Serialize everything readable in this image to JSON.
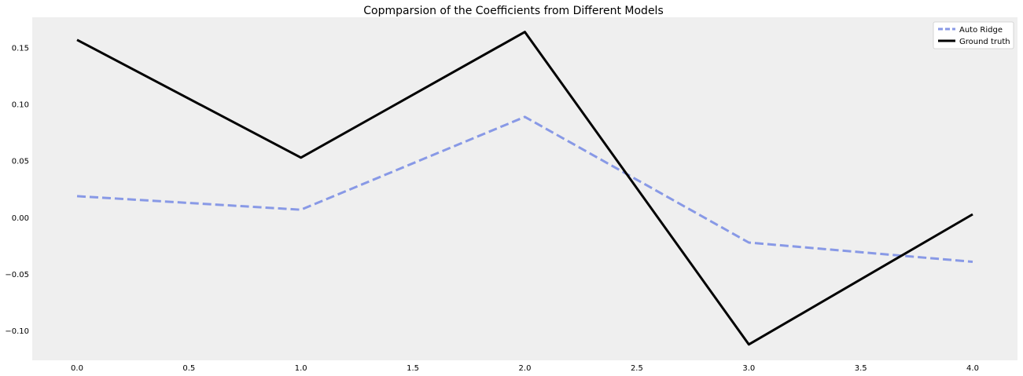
{
  "chart_data": {
    "type": "line",
    "title": "Copmparsion of the Coefficients from Different Models",
    "xlabel": "",
    "ylabel": "",
    "x": [
      0,
      1,
      2,
      3,
      4
    ],
    "series": [
      {
        "name": "Auto Ridge",
        "values": [
          0.019,
          0.007,
          0.089,
          -0.022,
          -0.039
        ],
        "color": "#8899e6",
        "style": "dashed"
      },
      {
        "name": "Ground truth",
        "values": [
          0.157,
          0.053,
          0.164,
          -0.112,
          0.003
        ],
        "color": "#000000",
        "style": "solid"
      }
    ],
    "xlim": [
      -0.2,
      4.2
    ],
    "ylim": [
      -0.126,
      0.177
    ],
    "xticks": [
      0.0,
      0.5,
      1.0,
      1.5,
      2.0,
      2.5,
      3.0,
      3.5,
      4.0
    ],
    "xtick_labels": [
      "0.0",
      "0.5",
      "1.0",
      "1.5",
      "2.0",
      "2.5",
      "3.0",
      "3.5",
      "4.0"
    ],
    "yticks": [
      -0.1,
      -0.05,
      0.0,
      0.05,
      0.1,
      0.15
    ],
    "ytick_labels": [
      "−0.10",
      "−0.05",
      "0.00",
      "0.05",
      "0.10",
      "0.15"
    ],
    "grid": false,
    "legend": "top-right",
    "background_color": "#efefef"
  }
}
